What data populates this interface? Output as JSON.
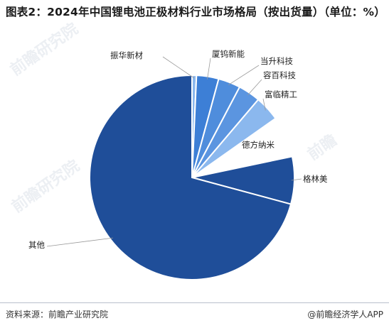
{
  "title": "图表2：2024年中国锂电池正极材料行业市场格局（按出货量）（单位：%）",
  "footer": {
    "source": "资料来源：前瞻产业研究院",
    "brand": "@前瞻经济学人APP"
  },
  "colors": {
    "dark_blue": "#1f4e99",
    "mid_blue": "#3d7fd6",
    "light_blue_1": "#5b95e0",
    "light_blue_2": "#6ea3e6",
    "light_blue_3": "#8bb8ee",
    "white_slice": "#ffffff",
    "leader": "#999999"
  },
  "chart_data": {
    "type": "pie",
    "title": "图表2：2024年中国锂电池正极材料行业市场格局（按出货量）（单位：%）",
    "start_angle_deg": 0,
    "direction": "clockwise",
    "slices": [
      {
        "label": "振华新材",
        "value": 0.7,
        "color": "#8bb8ee"
      },
      {
        "label": "厦钨新能",
        "value": 3.5,
        "color": "#3d7fd6"
      },
      {
        "label": "当升科技",
        "value": 3.5,
        "color": "#4f8ddc"
      },
      {
        "label": "容百科技",
        "value": 3.5,
        "color": "#5b95e0"
      },
      {
        "label": "富临精工",
        "value": 4.0,
        "color": "#8bb8ee"
      },
      {
        "label": "德方纳米",
        "value": 6.5,
        "color": "#ffffff"
      },
      {
        "label": "格林美",
        "value": 7.5,
        "color": "#1f4e99"
      },
      {
        "label": "其他",
        "value": 70.8,
        "color": "#1f4e99"
      }
    ]
  }
}
